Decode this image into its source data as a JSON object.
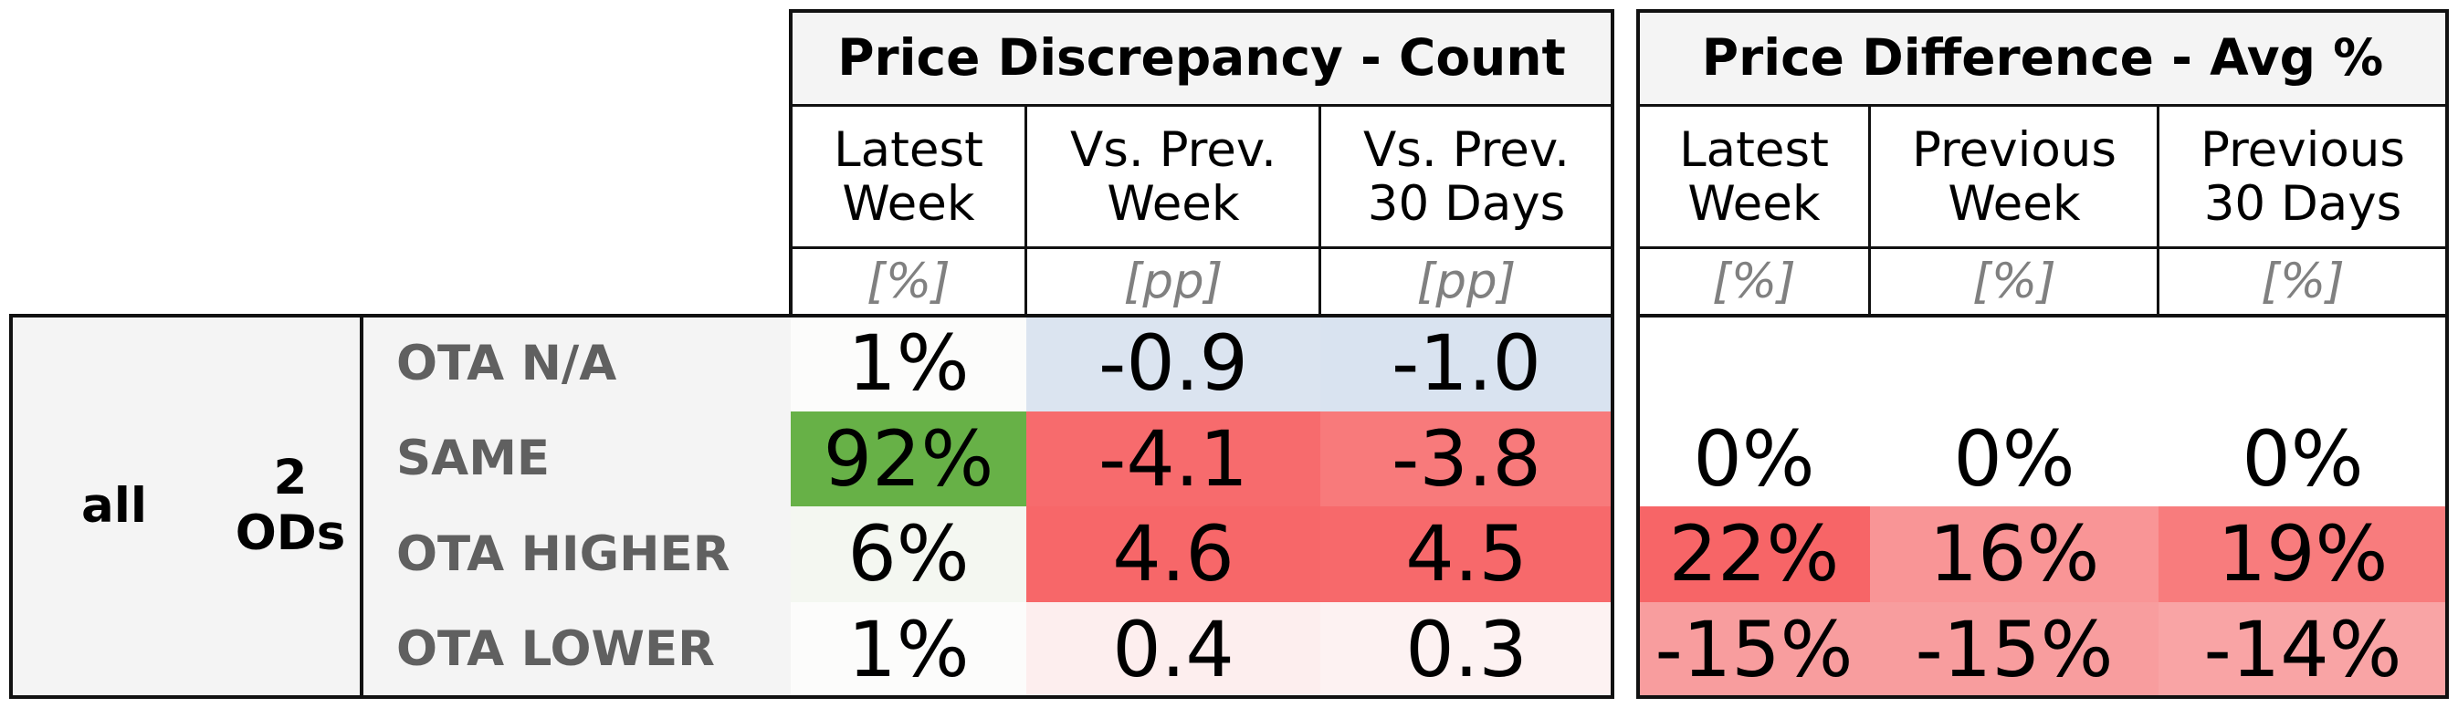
{
  "chart_data": {
    "type": "table",
    "groups": [
      {
        "title": "Price Discrepancy - Count",
        "columns": [
          {
            "label": "Latest\nWeek",
            "unit": "[%]"
          },
          {
            "label": "Vs. Prev.\nWeek",
            "unit": "[pp]"
          },
          {
            "label": "Vs. Prev.\n30 Days",
            "unit": "[pp]"
          }
        ]
      },
      {
        "title": "Price Difference - Avg %",
        "columns": [
          {
            "label": "Latest\nWeek",
            "unit": "[%]"
          },
          {
            "label": "Previous\nWeek",
            "unit": "[%]"
          },
          {
            "label": "Previous\n30 Days",
            "unit": "[%]"
          }
        ]
      }
    ],
    "row_group": {
      "level1": "all",
      "level2": "2\nODs"
    },
    "rows": [
      {
        "label": "OTA N/A",
        "discrepancy": [
          "1%",
          "-0.9",
          "-1.0"
        ],
        "difference": [
          "",
          "",
          ""
        ],
        "discrepancy_colors": [
          "#fcfcfb",
          "#dbe4f0",
          "#d9e3f0"
        ],
        "difference_colors": [
          "#ffffff",
          "#ffffff",
          "#ffffff"
        ]
      },
      {
        "label": "SAME",
        "discrepancy": [
          "92%",
          "-4.1",
          "-3.8"
        ],
        "difference": [
          "0%",
          "0%",
          "0%"
        ],
        "discrepancy_colors": [
          "#67b147",
          "#f76b6d",
          "#f87a7b"
        ],
        "difference_colors": [
          "#ffffff",
          "#ffffff",
          "#ffffff"
        ]
      },
      {
        "label": "OTA HIGHER",
        "discrepancy": [
          "6%",
          "4.6",
          "4.5"
        ],
        "difference": [
          "22%",
          "16%",
          "19%"
        ],
        "discrepancy_colors": [
          "#f4f7f1",
          "#f76769",
          "#f7696b"
        ],
        "difference_colors": [
          "#f76567",
          "#f99596",
          "#f87c7d"
        ]
      },
      {
        "label": "OTA LOWER",
        "discrepancy": [
          "1%",
          "0.4",
          "0.3"
        ],
        "difference": [
          "-15%",
          "-15%",
          "-14%"
        ],
        "discrepancy_colors": [
          "#fcfcfb",
          "#fdeeee",
          "#fdf2f2"
        ],
        "difference_colors": [
          "#f89d9e",
          "#f89d9e",
          "#f9a4a5"
        ]
      }
    ]
  }
}
